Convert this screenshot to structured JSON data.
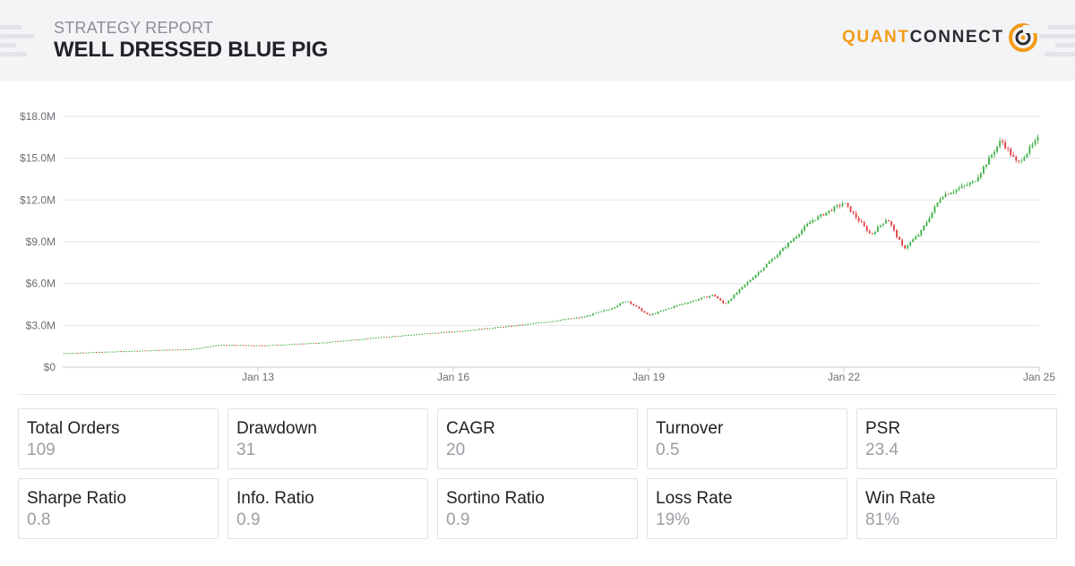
{
  "header": {
    "subtitle": "STRATEGY REPORT",
    "title": "WELL DRESSED BLUE PIG",
    "logo_quant": "QUANT",
    "logo_connect": "CONNECT"
  },
  "colors": {
    "up": "#3cb043",
    "down": "#e0393e",
    "accent": "#f39c1a",
    "grid": "#e6e7ea"
  },
  "chart_data": {
    "type": "candlestick",
    "y_unit": "USD",
    "ylim": [
      0,
      18000000
    ],
    "y_ticks": [
      {
        "value": 0,
        "label": "$0"
      },
      {
        "value": 3000000,
        "label": "$3.0M"
      },
      {
        "value": 6000000,
        "label": "$6.0M"
      },
      {
        "value": 9000000,
        "label": "$9.0M"
      },
      {
        "value": 12000000,
        "label": "$12.0M"
      },
      {
        "value": 15000000,
        "label": "$15.0M"
      },
      {
        "value": 18000000,
        "label": "$18.0M"
      }
    ],
    "xlim": [
      "2010-01",
      "2025-01"
    ],
    "x_ticks": [
      {
        "value": "2013-01",
        "label": "Jan 13"
      },
      {
        "value": "2016-01",
        "label": "Jan 16"
      },
      {
        "value": "2019-01",
        "label": "Jan 19"
      },
      {
        "value": "2022-01",
        "label": "Jan 22"
      },
      {
        "value": "2025-01",
        "label": "Jan 25"
      }
    ],
    "grid": true,
    "legend": "none",
    "trend": [
      {
        "x": "2010-01",
        "y": 1000000
      },
      {
        "x": "2011-01",
        "y": 1150000
      },
      {
        "x": "2012-01",
        "y": 1300000
      },
      {
        "x": "2012-06",
        "y": 1600000
      },
      {
        "x": "2013-01",
        "y": 1550000
      },
      {
        "x": "2014-01",
        "y": 1750000
      },
      {
        "x": "2015-01",
        "y": 2200000
      },
      {
        "x": "2016-01",
        "y": 2550000
      },
      {
        "x": "2017-01",
        "y": 3000000
      },
      {
        "x": "2018-01",
        "y": 3600000
      },
      {
        "x": "2018-06",
        "y": 4200000
      },
      {
        "x": "2018-09",
        "y": 4800000
      },
      {
        "x": "2019-01",
        "y": 3700000
      },
      {
        "x": "2019-06",
        "y": 4400000
      },
      {
        "x": "2020-01",
        "y": 5200000
      },
      {
        "x": "2020-03",
        "y": 4500000
      },
      {
        "x": "2020-07",
        "y": 6000000
      },
      {
        "x": "2021-01",
        "y": 8200000
      },
      {
        "x": "2021-07",
        "y": 10500000
      },
      {
        "x": "2022-01",
        "y": 11800000
      },
      {
        "x": "2022-06",
        "y": 9500000
      },
      {
        "x": "2022-09",
        "y": 10700000
      },
      {
        "x": "2022-12",
        "y": 8500000
      },
      {
        "x": "2023-03",
        "y": 9600000
      },
      {
        "x": "2023-07",
        "y": 12300000
      },
      {
        "x": "2024-01",
        "y": 13300000
      },
      {
        "x": "2024-06",
        "y": 16300000
      },
      {
        "x": "2024-09",
        "y": 14600000
      },
      {
        "x": "2025-01",
        "y": 16500000
      }
    ]
  },
  "stats": [
    {
      "label": "Total Orders",
      "value": "109"
    },
    {
      "label": "Drawdown",
      "value": "31"
    },
    {
      "label": "CAGR",
      "value": "20"
    },
    {
      "label": "Turnover",
      "value": "0.5"
    },
    {
      "label": "PSR",
      "value": "23.4"
    },
    {
      "label": "Sharpe Ratio",
      "value": "0.8"
    },
    {
      "label": "Info. Ratio",
      "value": "0.9"
    },
    {
      "label": "Sortino Ratio",
      "value": "0.9"
    },
    {
      "label": "Loss Rate",
      "value": "19%"
    },
    {
      "label": "Win Rate",
      "value": "81%"
    }
  ]
}
